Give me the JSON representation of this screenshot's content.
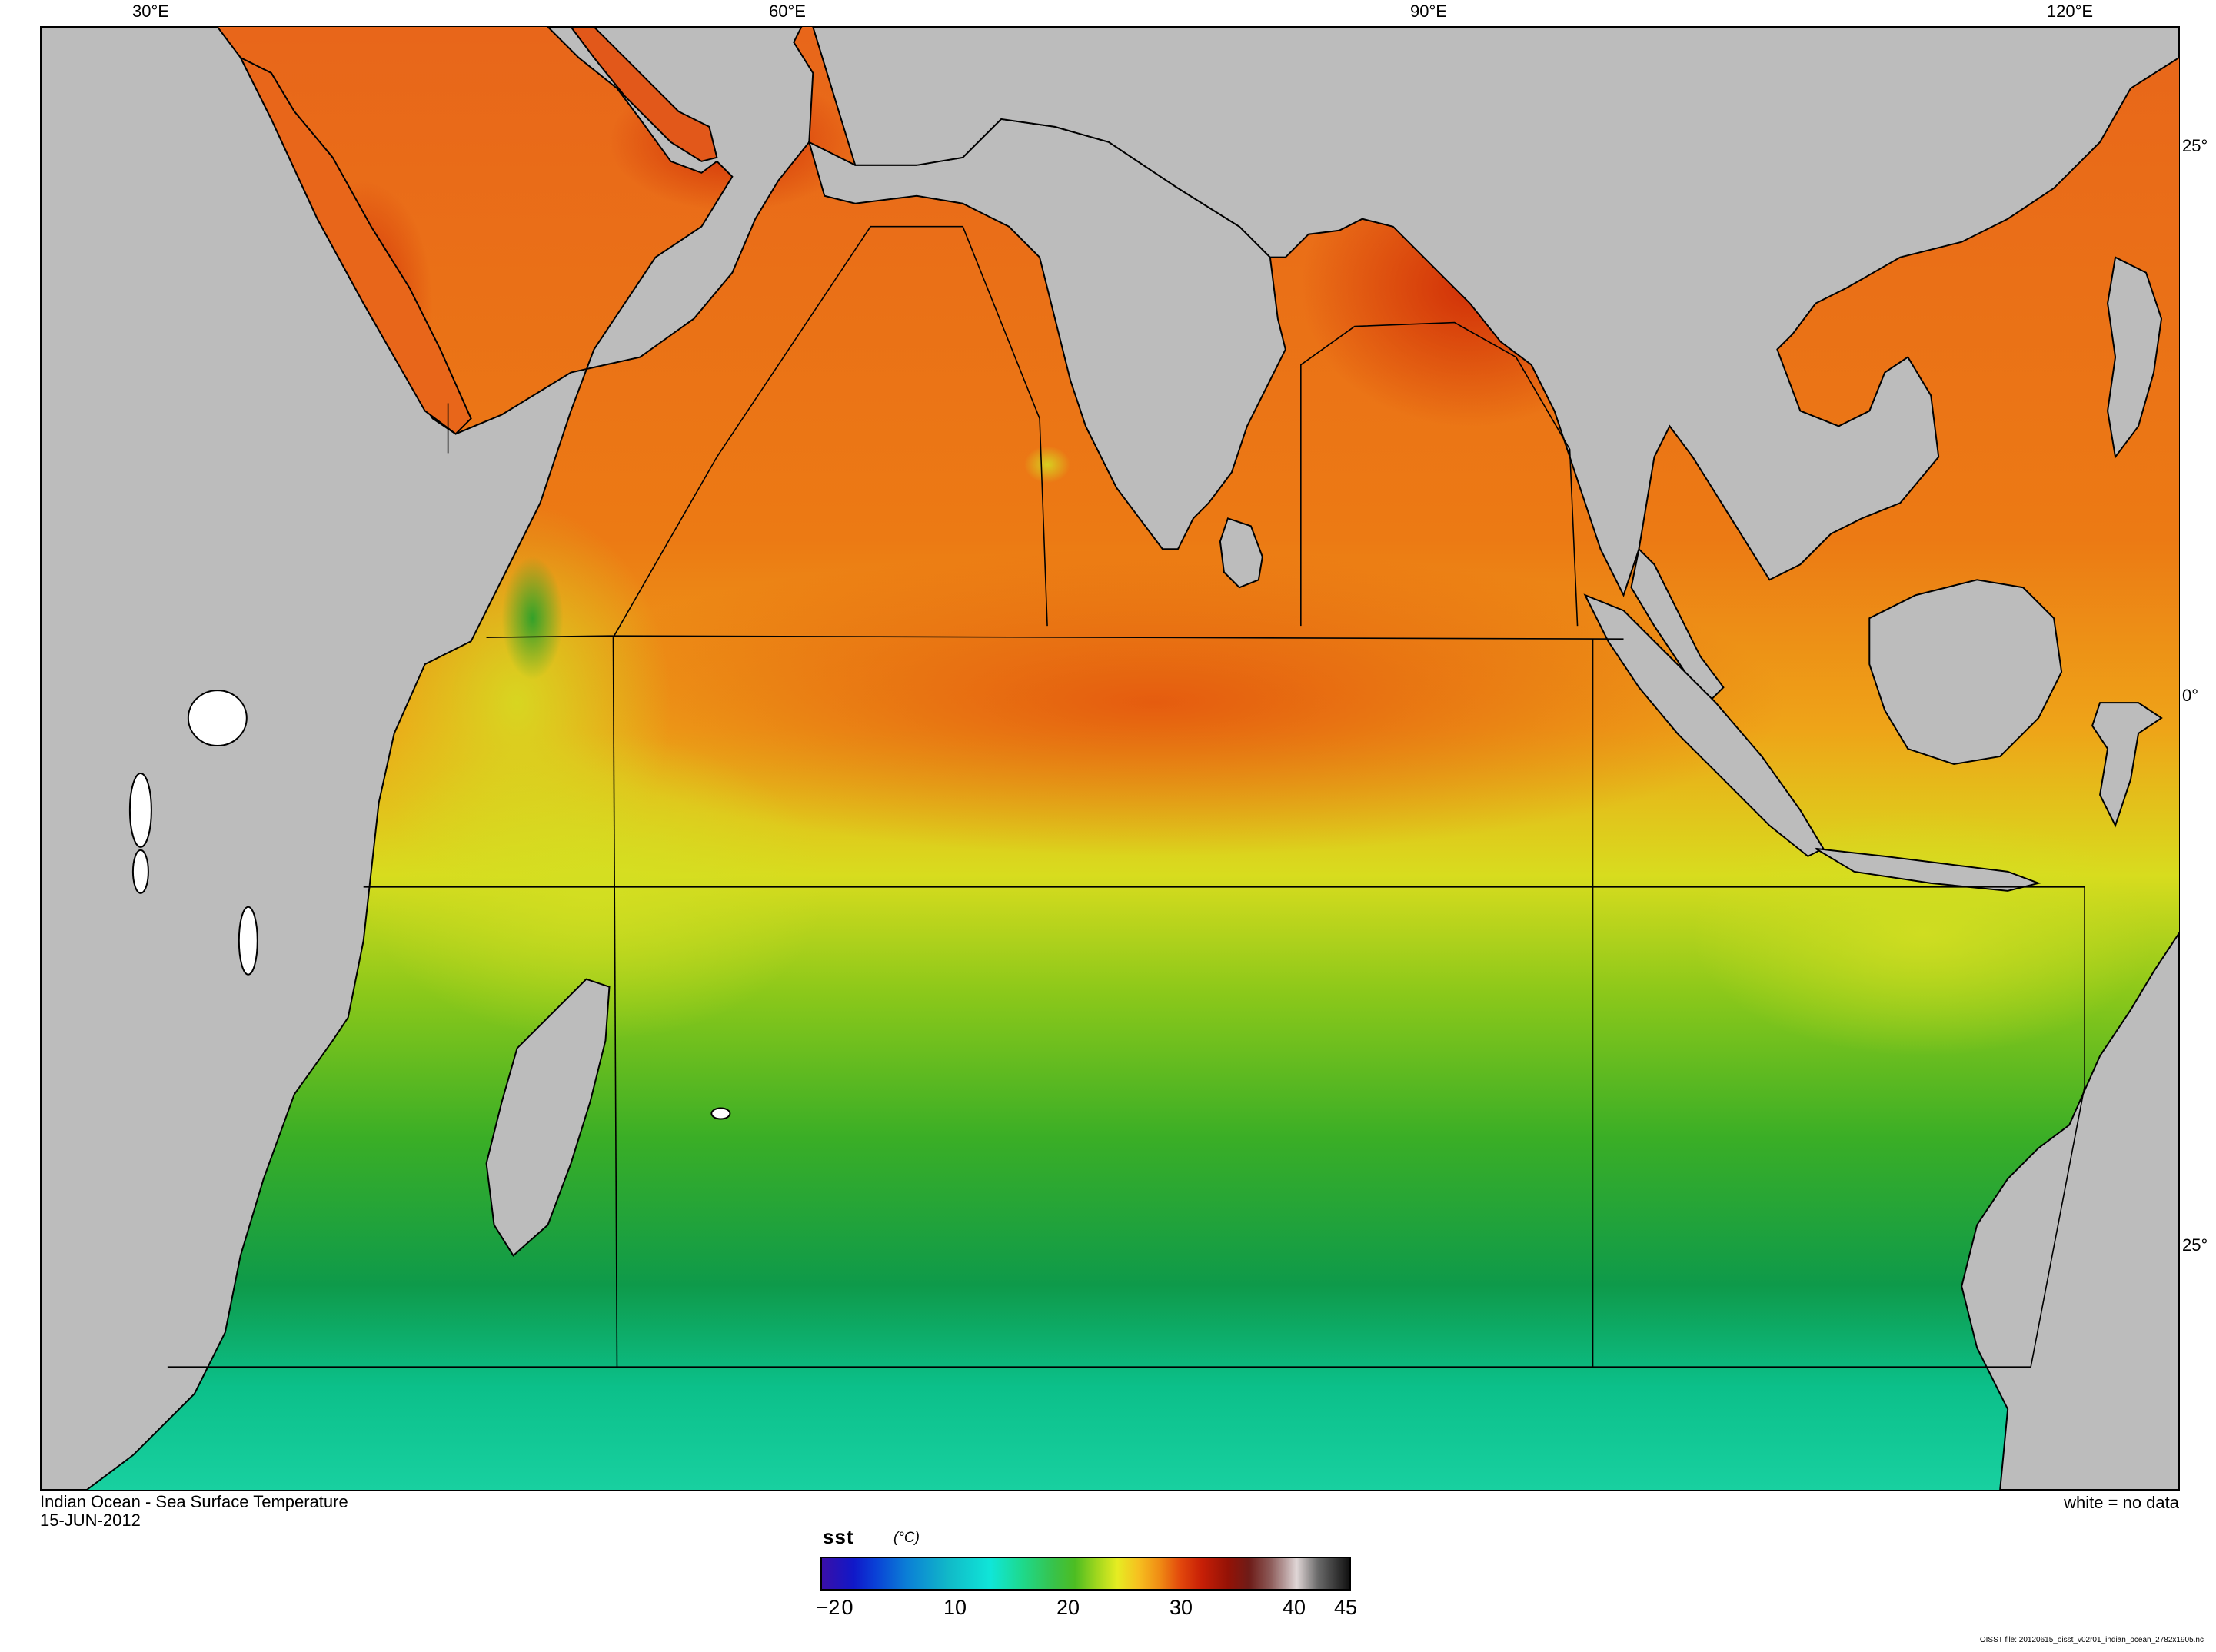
{
  "map": {
    "title": "Indian Ocean - Sea Surface Temperature",
    "date": "15-JUN-2012",
    "no_data_note": "white = no data",
    "lon_labels": [
      "30°E",
      "60°E",
      "90°E",
      "120°E"
    ],
    "lat_labels": [
      "25°",
      "0°",
      "25°"
    ],
    "colors": {
      "land": "#bcbcbc",
      "ocean_cold": "#00a86a",
      "ocean_warm": "#e8550c",
      "no_data": "#ffffff"
    }
  },
  "colorbar": {
    "variable": "sst",
    "units": "(°C)",
    "min": -2,
    "max": 45,
    "tick_labels": [
      "−2",
      "0",
      "10",
      "20",
      "30",
      "40",
      "45"
    ]
  },
  "footnote": "OISST file: 20120615_oisst_v02r01_indian_ocean_2782x1905.nc"
}
